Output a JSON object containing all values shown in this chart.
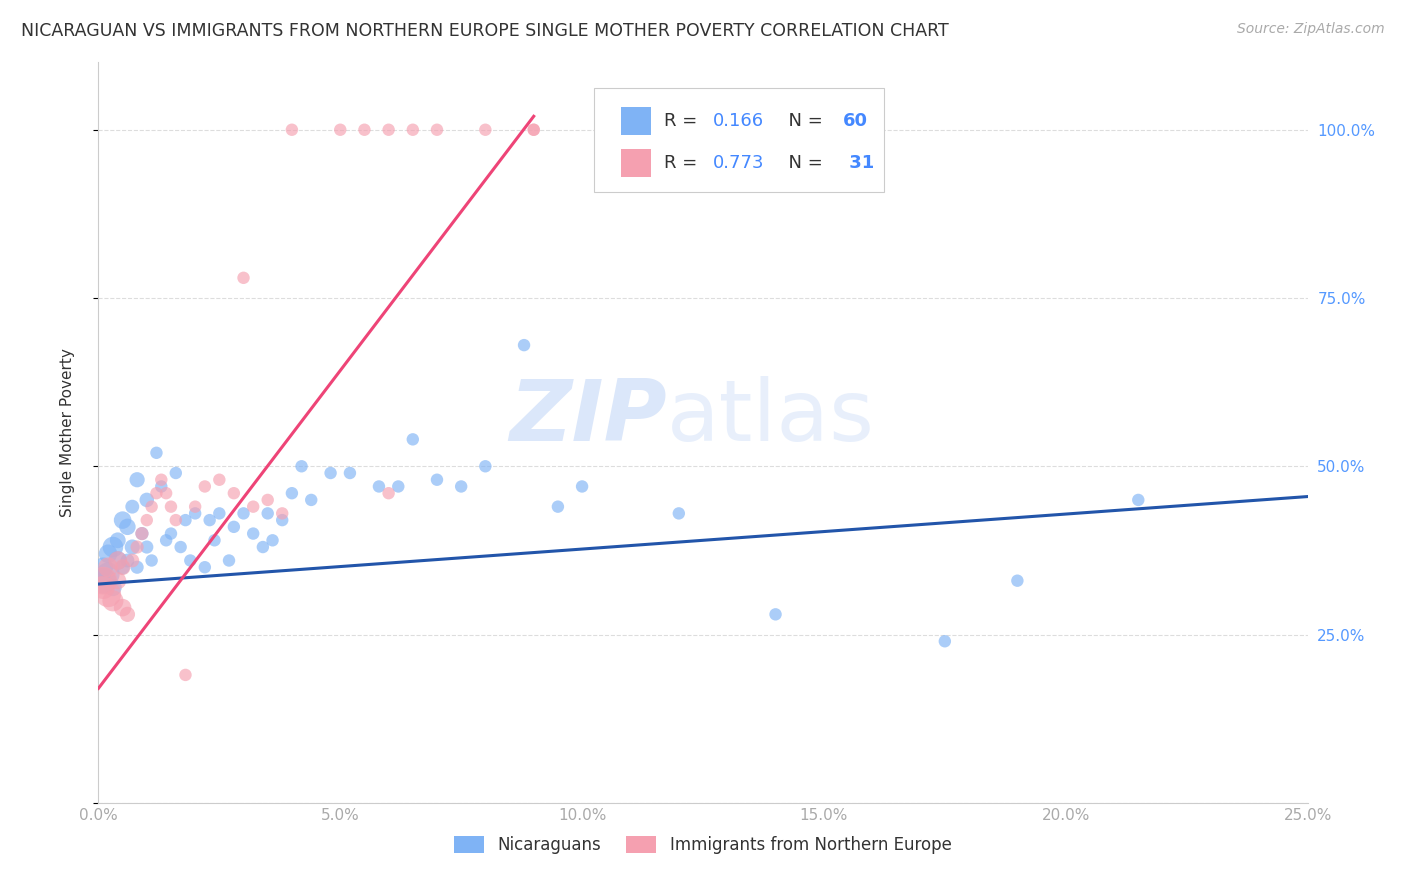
{
  "title": "NICARAGUAN VS IMMIGRANTS FROM NORTHERN EUROPE SINGLE MOTHER POVERTY CORRELATION CHART",
  "source": "Source: ZipAtlas.com",
  "ylabel": "Single Mother Poverty",
  "legend1_label": "Nicaraguans",
  "legend2_label": "Immigrants from Northern Europe",
  "R1": 0.166,
  "N1": 60,
  "R2": 0.773,
  "N2": 31,
  "color_blue": "#7fb3f5",
  "color_pink": "#f5a0b0",
  "color_blue_line": "#2255aa",
  "color_pink_line": "#ee4477",
  "blue_x": [
    0.001,
    0.001,
    0.002,
    0.002,
    0.003,
    0.003,
    0.004,
    0.004,
    0.005,
    0.005,
    0.006,
    0.006,
    0.007,
    0.007,
    0.008,
    0.008,
    0.009,
    0.01,
    0.01,
    0.011,
    0.012,
    0.013,
    0.014,
    0.015,
    0.016,
    0.017,
    0.018,
    0.019,
    0.02,
    0.022,
    0.023,
    0.024,
    0.025,
    0.027,
    0.028,
    0.03,
    0.032,
    0.034,
    0.035,
    0.036,
    0.038,
    0.04,
    0.042,
    0.044,
    0.048,
    0.052,
    0.058,
    0.062,
    0.065,
    0.07,
    0.075,
    0.08,
    0.088,
    0.095,
    0.1,
    0.12,
    0.14,
    0.175,
    0.19,
    0.215
  ],
  "blue_y": [
    0.33,
    0.35,
    0.34,
    0.37,
    0.38,
    0.32,
    0.36,
    0.39,
    0.42,
    0.35,
    0.41,
    0.36,
    0.38,
    0.44,
    0.48,
    0.35,
    0.4,
    0.45,
    0.38,
    0.36,
    0.52,
    0.47,
    0.39,
    0.4,
    0.49,
    0.38,
    0.42,
    0.36,
    0.43,
    0.35,
    0.42,
    0.39,
    0.43,
    0.36,
    0.41,
    0.43,
    0.4,
    0.38,
    0.43,
    0.39,
    0.42,
    0.46,
    0.5,
    0.45,
    0.49,
    0.49,
    0.47,
    0.47,
    0.54,
    0.48,
    0.47,
    0.5,
    0.68,
    0.44,
    0.47,
    0.43,
    0.28,
    0.24,
    0.33,
    0.45
  ],
  "blue_sizes": [
    350,
    200,
    280,
    180,
    220,
    160,
    180,
    130,
    160,
    110,
    140,
    100,
    120,
    100,
    120,
    90,
    90,
    110,
    90,
    80,
    80,
    80,
    80,
    80,
    80,
    80,
    80,
    80,
    80,
    80,
    80,
    80,
    80,
    80,
    80,
    80,
    80,
    80,
    80,
    80,
    80,
    80,
    80,
    80,
    80,
    80,
    80,
    80,
    80,
    80,
    80,
    80,
    80,
    80,
    80,
    80,
    80,
    80,
    80,
    80
  ],
  "pink_x": [
    0.001,
    0.001,
    0.002,
    0.002,
    0.003,
    0.004,
    0.004,
    0.005,
    0.005,
    0.006,
    0.007,
    0.008,
    0.009,
    0.01,
    0.011,
    0.012,
    0.013,
    0.014,
    0.015,
    0.016,
    0.018,
    0.02,
    0.022,
    0.025,
    0.028,
    0.03,
    0.032,
    0.035,
    0.038,
    0.06,
    0.09
  ],
  "pink_y": [
    0.33,
    0.32,
    0.31,
    0.35,
    0.3,
    0.36,
    0.33,
    0.29,
    0.35,
    0.28,
    0.36,
    0.38,
    0.4,
    0.42,
    0.44,
    0.46,
    0.48,
    0.46,
    0.44,
    0.42,
    0.19,
    0.44,
    0.47,
    0.48,
    0.46,
    0.78,
    0.44,
    0.45,
    0.43,
    0.46,
    1.0
  ],
  "pink_sizes": [
    400,
    280,
    350,
    200,
    230,
    180,
    150,
    160,
    130,
    120,
    100,
    90,
    90,
    80,
    80,
    80,
    80,
    80,
    80,
    80,
    80,
    80,
    80,
    80,
    80,
    80,
    80,
    80,
    80,
    80,
    80
  ],
  "pink_top_x": [
    0.04,
    0.05,
    0.055,
    0.06,
    0.065,
    0.07,
    0.08,
    0.09
  ],
  "pink_top_y": [
    1.0,
    1.0,
    1.0,
    1.0,
    1.0,
    1.0,
    1.0,
    1.0
  ],
  "blue_line_x": [
    0.0,
    0.25
  ],
  "blue_line_y": [
    0.325,
    0.455
  ],
  "pink_line_x": [
    0.0,
    0.09
  ],
  "pink_line_y": [
    0.17,
    1.02
  ],
  "xlim": [
    0.0,
    0.25
  ],
  "ylim": [
    0.0,
    1.1
  ],
  "y_ticks": [
    0.0,
    0.25,
    0.5,
    0.75,
    1.0
  ],
  "y_tick_labels_right": [
    "",
    "25.0%",
    "50.0%",
    "75.0%",
    "100.0%"
  ],
  "x_ticks": [
    0.0,
    0.05,
    0.1,
    0.15,
    0.2,
    0.25
  ],
  "x_tick_labels": [
    "0.0%",
    "5.0%",
    "10.0%",
    "15.0%",
    "20.0%",
    "25.0%"
  ],
  "watermark_zip": "ZIP",
  "watermark_atlas": "atlas",
  "background_color": "#ffffff",
  "grid_color": "#dddddd"
}
